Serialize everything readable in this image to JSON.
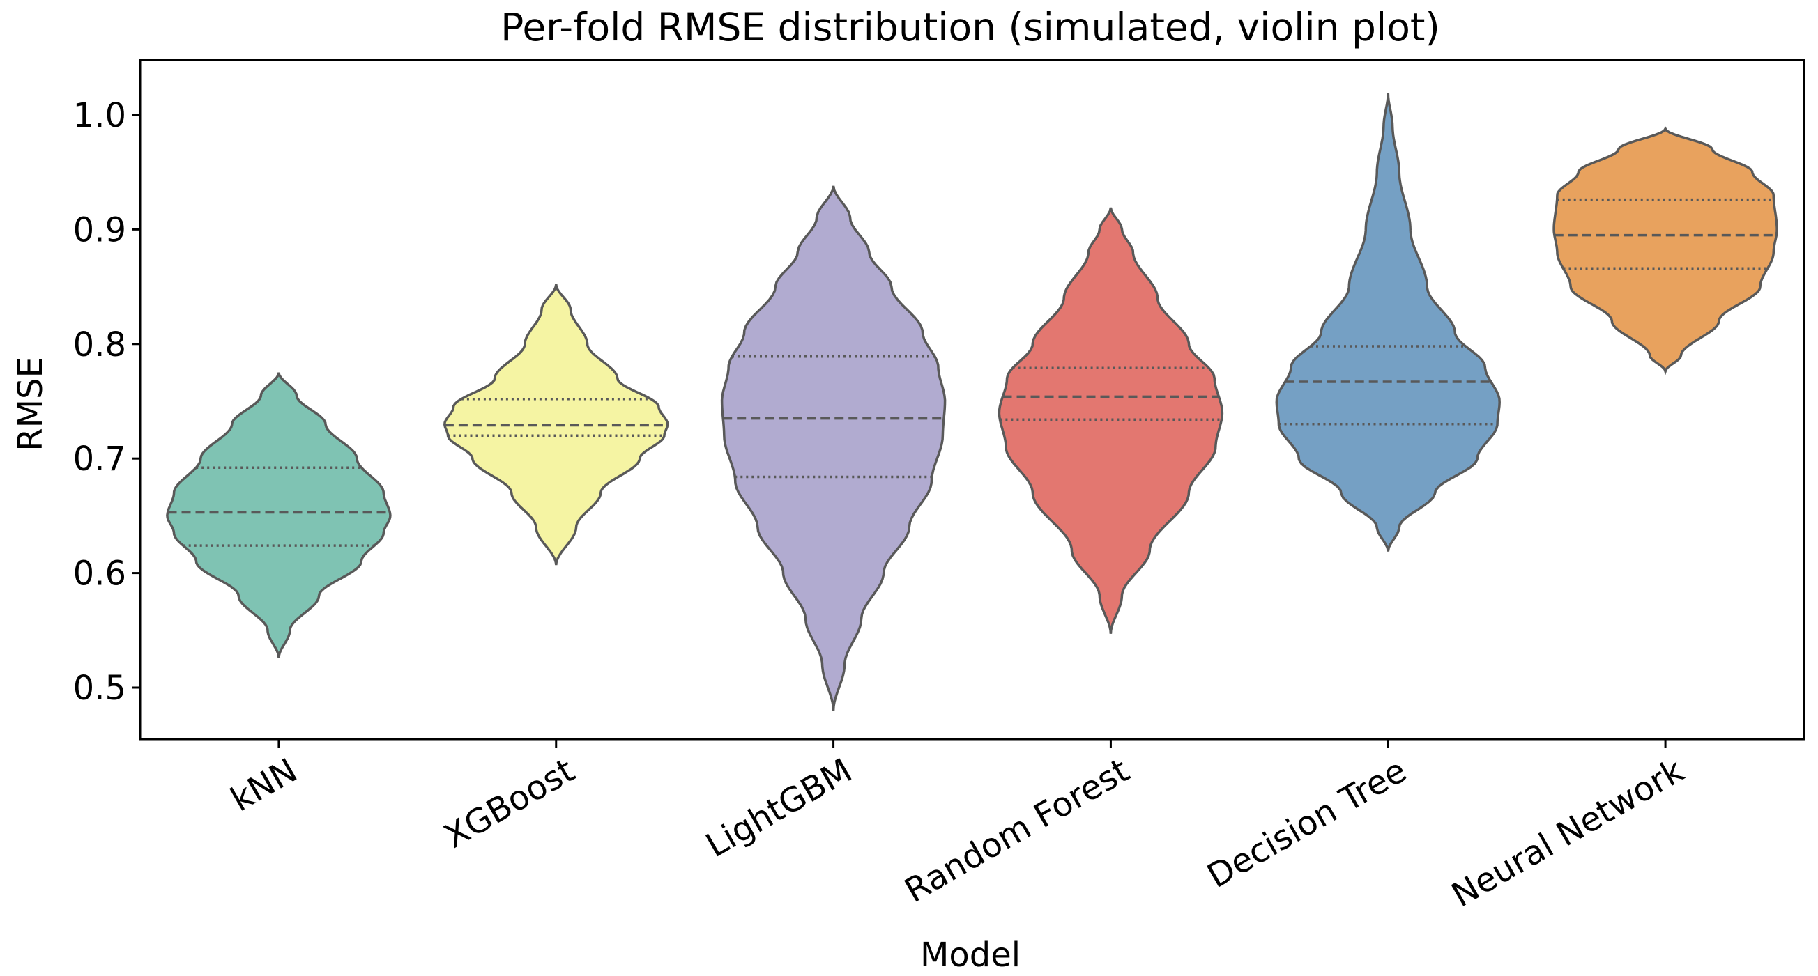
{
  "chart_data": {
    "type": "violin",
    "title": "Per-fold RMSE distribution (simulated, violin plot)",
    "xlabel": "Model",
    "ylabel": "RMSE",
    "ylim": [
      0.455,
      1.048
    ],
    "yticks": [
      0.5,
      0.6,
      0.7,
      0.8,
      0.9,
      1.0
    ],
    "ytick_labels": [
      "0.5",
      "0.6",
      "0.7",
      "0.8",
      "0.9",
      "1.0"
    ],
    "categories": [
      "kNN",
      "XGBoost",
      "LightGBM",
      "Random Forest",
      "Decision Tree",
      "Neural Network"
    ],
    "series": [
      {
        "name": "kNN",
        "color": "#7fc3b3",
        "min": 0.526,
        "max": 0.775,
        "q1": 0.624,
        "median": 0.653,
        "q3": 0.692,
        "profile": [
          [
            0.526,
            0.0
          ],
          [
            0.55,
            0.1
          ],
          [
            0.58,
            0.36
          ],
          [
            0.61,
            0.74
          ],
          [
            0.635,
            0.94
          ],
          [
            0.65,
            1.0
          ],
          [
            0.67,
            0.94
          ],
          [
            0.7,
            0.7
          ],
          [
            0.73,
            0.42
          ],
          [
            0.755,
            0.16
          ],
          [
            0.775,
            0.0
          ]
        ]
      },
      {
        "name": "XGBoost",
        "color": "#f5f4a3",
        "min": 0.607,
        "max": 0.852,
        "q1": 0.72,
        "median": 0.729,
        "q3": 0.752,
        "profile": [
          [
            0.607,
            0.0
          ],
          [
            0.64,
            0.18
          ],
          [
            0.67,
            0.4
          ],
          [
            0.7,
            0.75
          ],
          [
            0.72,
            0.97
          ],
          [
            0.73,
            1.0
          ],
          [
            0.745,
            0.92
          ],
          [
            0.77,
            0.55
          ],
          [
            0.8,
            0.28
          ],
          [
            0.83,
            0.13
          ],
          [
            0.852,
            0.0
          ]
        ]
      },
      {
        "name": "LightGBM",
        "color": "#b1abd0",
        "min": 0.48,
        "max": 0.938,
        "q1": 0.684,
        "median": 0.735,
        "q3": 0.789,
        "profile": [
          [
            0.48,
            0.0
          ],
          [
            0.52,
            0.1
          ],
          [
            0.56,
            0.25
          ],
          [
            0.6,
            0.45
          ],
          [
            0.64,
            0.68
          ],
          [
            0.68,
            0.88
          ],
          [
            0.72,
            0.98
          ],
          [
            0.75,
            1.0
          ],
          [
            0.78,
            0.94
          ],
          [
            0.81,
            0.8
          ],
          [
            0.85,
            0.52
          ],
          [
            0.88,
            0.32
          ],
          [
            0.91,
            0.15
          ],
          [
            0.938,
            0.0
          ]
        ]
      },
      {
        "name": "Random Forest",
        "color": "#e37770",
        "min": 0.547,
        "max": 0.919,
        "q1": 0.734,
        "median": 0.754,
        "q3": 0.779,
        "profile": [
          [
            0.547,
            0.0
          ],
          [
            0.58,
            0.1
          ],
          [
            0.62,
            0.35
          ],
          [
            0.67,
            0.7
          ],
          [
            0.71,
            0.94
          ],
          [
            0.74,
            1.0
          ],
          [
            0.77,
            0.93
          ],
          [
            0.8,
            0.7
          ],
          [
            0.84,
            0.42
          ],
          [
            0.88,
            0.2
          ],
          [
            0.9,
            0.1
          ],
          [
            0.919,
            0.0
          ]
        ]
      },
      {
        "name": "Decision Tree",
        "color": "#75a0c4",
        "min": 0.619,
        "max": 1.019,
        "q1": 0.73,
        "median": 0.767,
        "q3": 0.798,
        "profile": [
          [
            0.619,
            0.0
          ],
          [
            0.64,
            0.1
          ],
          [
            0.67,
            0.42
          ],
          [
            0.7,
            0.8
          ],
          [
            0.73,
            0.98
          ],
          [
            0.75,
            1.0
          ],
          [
            0.78,
            0.87
          ],
          [
            0.81,
            0.6
          ],
          [
            0.85,
            0.35
          ],
          [
            0.9,
            0.2
          ],
          [
            0.95,
            0.1
          ],
          [
            0.99,
            0.04
          ],
          [
            1.019,
            0.0
          ]
        ]
      },
      {
        "name": "Neural Network",
        "color": "#e8a25e",
        "min": 0.776,
        "max": 0.988,
        "q1": 0.866,
        "median": 0.895,
        "q3": 0.926,
        "profile": [
          [
            0.776,
            0.0
          ],
          [
            0.79,
            0.14
          ],
          [
            0.82,
            0.48
          ],
          [
            0.85,
            0.85
          ],
          [
            0.88,
            0.97
          ],
          [
            0.9,
            1.0
          ],
          [
            0.93,
            0.97
          ],
          [
            0.95,
            0.78
          ],
          [
            0.97,
            0.42
          ],
          [
            0.988,
            0.0
          ]
        ]
      }
    ]
  }
}
